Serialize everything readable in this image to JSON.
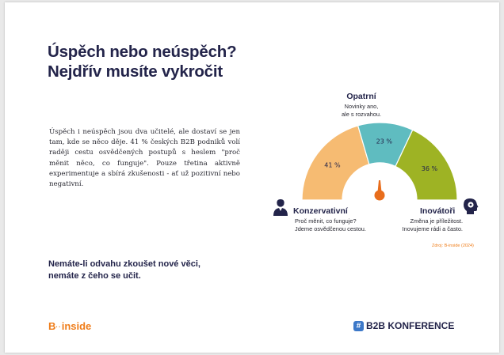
{
  "title": {
    "line1": "Úspěch nebo neúspěch?",
    "line2": "Nejdřív musíte vykročit"
  },
  "body_text": "Úspěch i neúspěch jsou dva učitelé, ale dostaví se jen tam, kde se něco děje. 41 % českých B2B podniků volí raději cestu osvědčených postupů s heslem \"proč měnit něco, co funguje\". Pouze třetina aktivně experimentuje a sbírá zkušenosti - ať už pozitivní nebo negativní.",
  "callout": {
    "line1": "Nemáte-li odvahu zkoušet nové věci,",
    "line2": "nemáte z čeho se učit."
  },
  "chart_data": {
    "type": "pie",
    "subtype": "semicircle-gauge",
    "categories": [
      "Konzervativní",
      "Opatrní",
      "Inovátoři"
    ],
    "values": [
      41,
      23,
      36
    ],
    "labels": [
      "41 %",
      "23 %",
      "36 %"
    ],
    "colors": [
      "#f6bb72",
      "#5fbcc0",
      "#9eb324"
    ]
  },
  "segments": {
    "conservative": {
      "title": "Konzervativní",
      "desc1": "Proč měnit, co funguje?",
      "desc2": "Jdeme osvědčenou cestou."
    },
    "cautious": {
      "title": "Opatrní",
      "desc1": "Novinky ano,",
      "desc2": "ale s rozvahou."
    },
    "innovators": {
      "title": "Inovátoři",
      "desc1": "Změna je příležitost.",
      "desc2": "Inovujeme rádi a často."
    }
  },
  "source": "Zdroj: B-inside (2024)",
  "logos": {
    "binside_b": "B",
    "binside_dots": "··",
    "binside_word": "inside",
    "b2b_hash": "#",
    "b2b_text": "B2B KONFERENCE"
  },
  "colors": {
    "accent": "#ef7d1a",
    "navy": "#23244a",
    "needle": "#e86d1c"
  },
  "icons": [
    "person-icon",
    "gear-head-icon"
  ]
}
